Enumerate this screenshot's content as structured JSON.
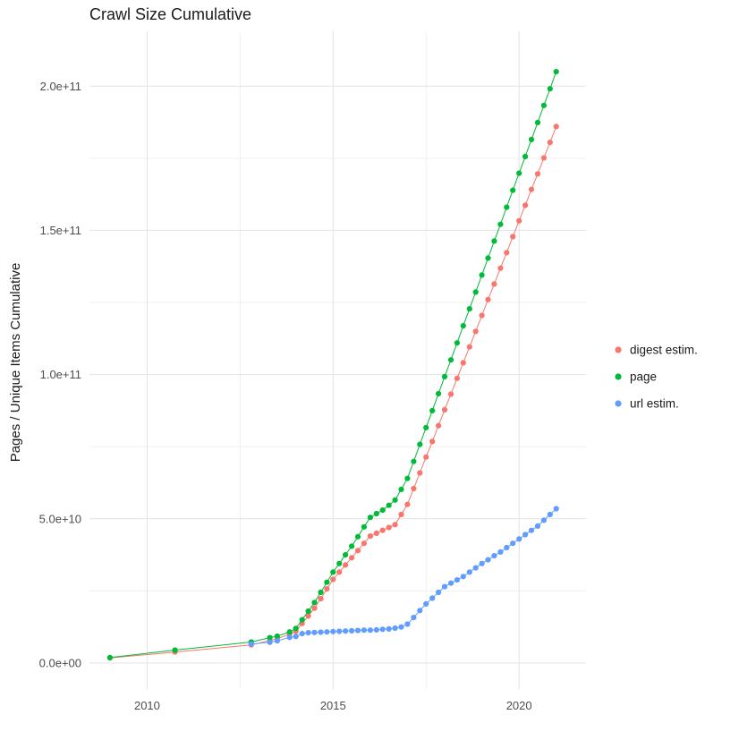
{
  "page": {
    "background_color": "#ffffff"
  },
  "chart_data": {
    "type": "scatter",
    "subtype": "scatter-line-cumulative",
    "title": "Crawl Size Cumulative",
    "xlabel": "",
    "ylabel": "Pages / Unique Items Cumulative",
    "grid": true,
    "legend_position": "right",
    "y_unit_note": "values stored in billions (1e9); axis tick labels shown in scientific notation",
    "x_domain": [
      2008.45,
      2021.8
    ],
    "y_domain_e9": [
      -9,
      219
    ],
    "x_ticks": [
      {
        "value": 2010,
        "label": "2010"
      },
      {
        "value": 2015,
        "label": "2015"
      },
      {
        "value": 2020,
        "label": "2020"
      }
    ],
    "x_minor_ticks": [
      2012.5,
      2017.5
    ],
    "y_ticks": [
      {
        "value_e9": 0,
        "label": "0.0e+00"
      },
      {
        "value_e9": 50,
        "label": "5.0e+10"
      },
      {
        "value_e9": 100,
        "label": "1.0e+11"
      },
      {
        "value_e9": 150,
        "label": "1.5e+11"
      },
      {
        "value_e9": 200,
        "label": "2.0e+11"
      }
    ],
    "y_minor_ticks_e9": [
      25,
      75,
      125,
      175
    ],
    "colors": {
      "digest_estim": "#F8766D",
      "page": "#00BA38",
      "url_estim": "#619CFF",
      "grid_major": "#E3E3E3",
      "grid_minor": "#F1F1F1"
    },
    "series": [
      {
        "name": "digest estim.",
        "color": "#F8766D",
        "points_e9": [
          [
            2009.0,
            1.8
          ],
          [
            2010.75,
            3.8
          ],
          [
            2012.8,
            6.3
          ],
          [
            2013.3,
            7.8
          ],
          [
            2013.5,
            8.5
          ],
          [
            2013.83,
            10.0
          ],
          [
            2014.0,
            11.0
          ],
          [
            2014.167,
            13.7
          ],
          [
            2014.333,
            16.3
          ],
          [
            2014.5,
            19.0
          ],
          [
            2014.667,
            22.3
          ],
          [
            2014.833,
            25.7
          ],
          [
            2015.0,
            29.0
          ],
          [
            2015.167,
            31.5
          ],
          [
            2015.333,
            34.0
          ],
          [
            2015.5,
            36.5
          ],
          [
            2015.667,
            39.0
          ],
          [
            2015.833,
            41.5
          ],
          [
            2016.0,
            44.0
          ],
          [
            2016.167,
            45.0
          ],
          [
            2016.333,
            46.0
          ],
          [
            2016.5,
            47.0
          ],
          [
            2016.667,
            48.0
          ],
          [
            2016.833,
            51.5
          ],
          [
            2017.0,
            55.0
          ],
          [
            2017.167,
            60.5
          ],
          [
            2017.333,
            65.9
          ],
          [
            2017.5,
            71.4
          ],
          [
            2017.667,
            76.8
          ],
          [
            2017.833,
            82.3
          ],
          [
            2018.0,
            87.8
          ],
          [
            2018.167,
            93.2
          ],
          [
            2018.333,
            98.7
          ],
          [
            2018.5,
            104.1
          ],
          [
            2018.667,
            109.6
          ],
          [
            2018.833,
            115.0
          ],
          [
            2019.0,
            120.5
          ],
          [
            2019.167,
            126.0
          ],
          [
            2019.333,
            131.4
          ],
          [
            2019.5,
            136.9
          ],
          [
            2019.667,
            142.3
          ],
          [
            2019.833,
            147.8
          ],
          [
            2020.0,
            153.3
          ],
          [
            2020.167,
            158.7
          ],
          [
            2020.333,
            164.2
          ],
          [
            2020.5,
            169.6
          ],
          [
            2020.667,
            175.1
          ],
          [
            2020.833,
            180.5
          ],
          [
            2021.0,
            186.0
          ]
        ]
      },
      {
        "name": "page",
        "color": "#00BA38",
        "points_e9": [
          [
            2009.0,
            1.9
          ],
          [
            2010.75,
            4.5
          ],
          [
            2012.8,
            7.3
          ],
          [
            2013.3,
            8.8
          ],
          [
            2013.5,
            9.3
          ],
          [
            2013.83,
            10.8
          ],
          [
            2014.0,
            12.0
          ],
          [
            2014.167,
            15.0
          ],
          [
            2014.333,
            18.0
          ],
          [
            2014.5,
            21.0
          ],
          [
            2014.667,
            24.5
          ],
          [
            2014.833,
            28.0
          ],
          [
            2015.0,
            31.5
          ],
          [
            2015.167,
            34.5
          ],
          [
            2015.333,
            37.5
          ],
          [
            2015.5,
            40.5
          ],
          [
            2015.667,
            43.8
          ],
          [
            2015.833,
            47.2
          ],
          [
            2016.0,
            50.5
          ],
          [
            2016.167,
            51.8
          ],
          [
            2016.333,
            53.0
          ],
          [
            2016.5,
            54.7
          ],
          [
            2016.667,
            56.5
          ],
          [
            2016.833,
            60.2
          ],
          [
            2017.0,
            64.0
          ],
          [
            2017.167,
            69.9
          ],
          [
            2017.333,
            75.8
          ],
          [
            2017.5,
            81.6
          ],
          [
            2017.667,
            87.5
          ],
          [
            2017.833,
            93.4
          ],
          [
            2018.0,
            99.3
          ],
          [
            2018.167,
            105.1
          ],
          [
            2018.333,
            111.0
          ],
          [
            2018.5,
            116.9
          ],
          [
            2018.667,
            122.8
          ],
          [
            2018.833,
            128.6
          ],
          [
            2019.0,
            134.5
          ],
          [
            2019.167,
            140.4
          ],
          [
            2019.333,
            146.3
          ],
          [
            2019.5,
            152.1
          ],
          [
            2019.667,
            158.0
          ],
          [
            2019.833,
            163.9
          ],
          [
            2020.0,
            169.8
          ],
          [
            2020.167,
            175.6
          ],
          [
            2020.333,
            181.5
          ],
          [
            2020.5,
            187.4
          ],
          [
            2020.667,
            193.3
          ],
          [
            2020.833,
            199.1
          ],
          [
            2021.0,
            205.0
          ]
        ]
      },
      {
        "name": "url estim.",
        "color": "#619CFF",
        "points_e9": [
          [
            2012.8,
            6.6
          ],
          [
            2013.3,
            7.2
          ],
          [
            2013.5,
            7.7
          ],
          [
            2013.83,
            8.9
          ],
          [
            2014.0,
            9.2
          ],
          [
            2014.167,
            10.2
          ],
          [
            2014.333,
            10.5
          ],
          [
            2014.5,
            10.6
          ],
          [
            2014.667,
            10.7
          ],
          [
            2014.833,
            10.8
          ],
          [
            2015.0,
            10.9
          ],
          [
            2015.167,
            11.0
          ],
          [
            2015.333,
            11.1
          ],
          [
            2015.5,
            11.2
          ],
          [
            2015.667,
            11.3
          ],
          [
            2015.833,
            11.4
          ],
          [
            2016.0,
            11.4
          ],
          [
            2016.167,
            11.5
          ],
          [
            2016.333,
            11.7
          ],
          [
            2016.5,
            11.8
          ],
          [
            2016.667,
            12.1
          ],
          [
            2016.833,
            12.5
          ],
          [
            2017.0,
            13.5
          ],
          [
            2017.167,
            15.8
          ],
          [
            2017.333,
            18.2
          ],
          [
            2017.5,
            20.5
          ],
          [
            2017.667,
            22.5
          ],
          [
            2017.833,
            24.5
          ],
          [
            2018.0,
            26.5
          ],
          [
            2018.167,
            27.7
          ],
          [
            2018.333,
            28.8
          ],
          [
            2018.5,
            30.0
          ],
          [
            2018.667,
            31.5
          ],
          [
            2018.833,
            33.0
          ],
          [
            2019.0,
            34.5
          ],
          [
            2019.167,
            35.8
          ],
          [
            2019.333,
            37.2
          ],
          [
            2019.5,
            38.5
          ],
          [
            2019.667,
            40.0
          ],
          [
            2019.833,
            41.5
          ],
          [
            2020.0,
            43.0
          ],
          [
            2020.167,
            44.5
          ],
          [
            2020.333,
            46.0
          ],
          [
            2020.5,
            47.5
          ],
          [
            2020.667,
            49.5
          ],
          [
            2020.833,
            51.5
          ],
          [
            2021.0,
            53.5
          ]
        ]
      }
    ]
  }
}
